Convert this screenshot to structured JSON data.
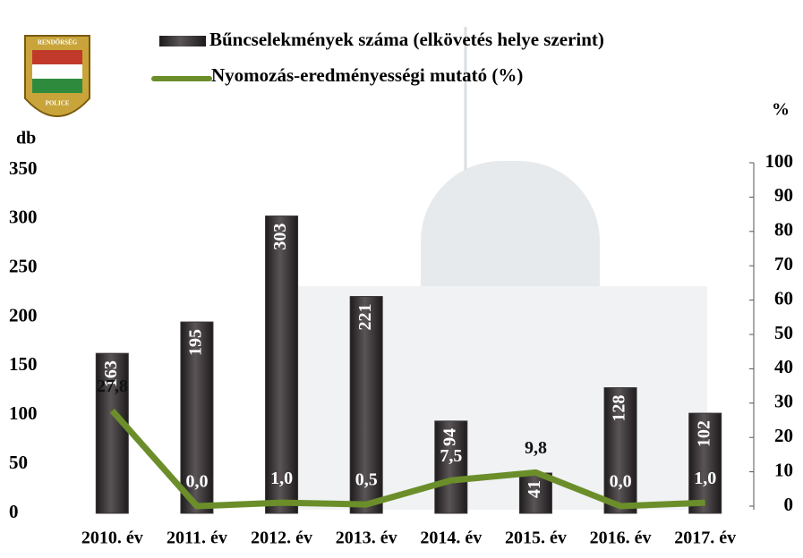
{
  "chart_data": {
    "type": "bar_line",
    "logo_texts": [
      "RENDŐRSÉG",
      "POLICE"
    ],
    "y_label": "db",
    "y2_label": "%",
    "categories": [
      "2010. év",
      "2011. év",
      "2012. év",
      "2013. év",
      "2014. év",
      "2015. év",
      "2016. év",
      "2017. év"
    ],
    "series": [
      {
        "name": "Bűncselekmények száma (elkövetés helye szerint)",
        "type": "bar",
        "color": "#3b3638",
        "axis": "y",
        "values": [
          163,
          195,
          303,
          221,
          94,
          41,
          128,
          102
        ]
      },
      {
        "name": "Nyomozás-eredményességi mutató (%)",
        "type": "line",
        "color": "#6b8e2a",
        "axis": "y2",
        "values": [
          27.8,
          0.0,
          1.0,
          0.5,
          7.5,
          9.8,
          0.0,
          1.0
        ],
        "value_labels": [
          "27,8",
          "0,0",
          "1,0",
          "0,5",
          "7,5",
          "9,8",
          "0,0",
          "1,0"
        ]
      }
    ],
    "ylim": [
      0,
      350
    ],
    "yticks": [
      0,
      50,
      100,
      150,
      200,
      250,
      300,
      350
    ],
    "y2lim": [
      0,
      100
    ],
    "y2ticks": [
      0,
      10,
      20,
      30,
      40,
      50,
      60,
      70,
      80,
      90,
      100
    ],
    "grid": false
  }
}
